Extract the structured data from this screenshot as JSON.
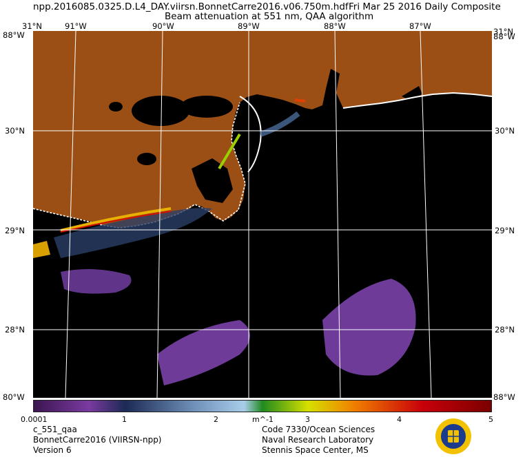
{
  "header": {
    "line1_left": "npp.2016085.0325.D.L4_DAY.viirsn.BonnetCarre2016.v06.750m.hdf",
    "line1_right": "Fri Mar 25 2016 Daily Composite",
    "line2": "Beam attenuation at 551 nm, QAA algorithm"
  },
  "longitudes": [
    "91°W",
    "90°W",
    "89°W",
    "88°W",
    "87°W"
  ],
  "latitudes": [
    "30°N",
    "29°N",
    "28°N"
  ],
  "corner_labels": {
    "top_left": "31°N",
    "top_right": "31°N",
    "left_top": "88°W",
    "right_top": "88°W",
    "left_bottom": "80°W",
    "right_bottom": "88°W"
  },
  "colorbar": {
    "ticks": [
      "0.0001",
      "1",
      "2",
      "m^-1",
      "3",
      "4",
      "5"
    ],
    "colors": [
      "#3b1650",
      "#7a3aa0",
      "#1c2a54",
      "#6f90b8",
      "#a8cdea",
      "#1f8a1f",
      "#d6e000",
      "#f07f00",
      "#c8000a",
      "#7a0000"
    ]
  },
  "footer_left": [
    "c_551_qaa",
    "BonnetCarre2016 (VIIRSN-npp)",
    "Version 6"
  ],
  "footer_right": [
    "Code 7330/Ocean Sciences",
    "Naval Research Laboratory",
    "Stennis Space Center, MS"
  ],
  "logo_icon": "nrl-seal-icon",
  "map_colors": {
    "land": "#9b4f15",
    "water": "#000000",
    "graticule": "#ffffff",
    "turbid": "#7a43a8"
  }
}
